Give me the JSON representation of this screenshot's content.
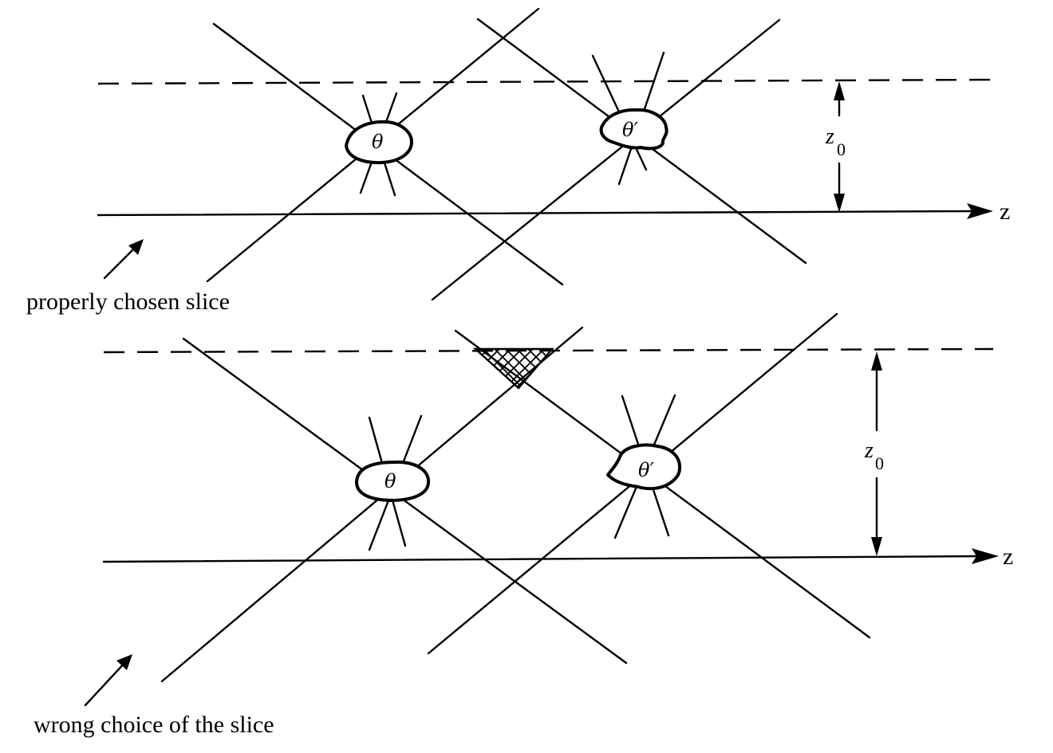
{
  "panels": [
    {
      "id": "top",
      "caption": "properly chosen slice",
      "axis_label": "z",
      "height_label": "z",
      "height_label_sub": "0",
      "region_labels": [
        "θ",
        "θ′"
      ]
    },
    {
      "id": "bottom",
      "caption": "wrong choice of the slice",
      "axis_label": "z",
      "height_label": "z",
      "height_label_sub": "0",
      "region_labels": [
        "θ",
        "θ′"
      ],
      "hatched_region": true
    }
  ]
}
